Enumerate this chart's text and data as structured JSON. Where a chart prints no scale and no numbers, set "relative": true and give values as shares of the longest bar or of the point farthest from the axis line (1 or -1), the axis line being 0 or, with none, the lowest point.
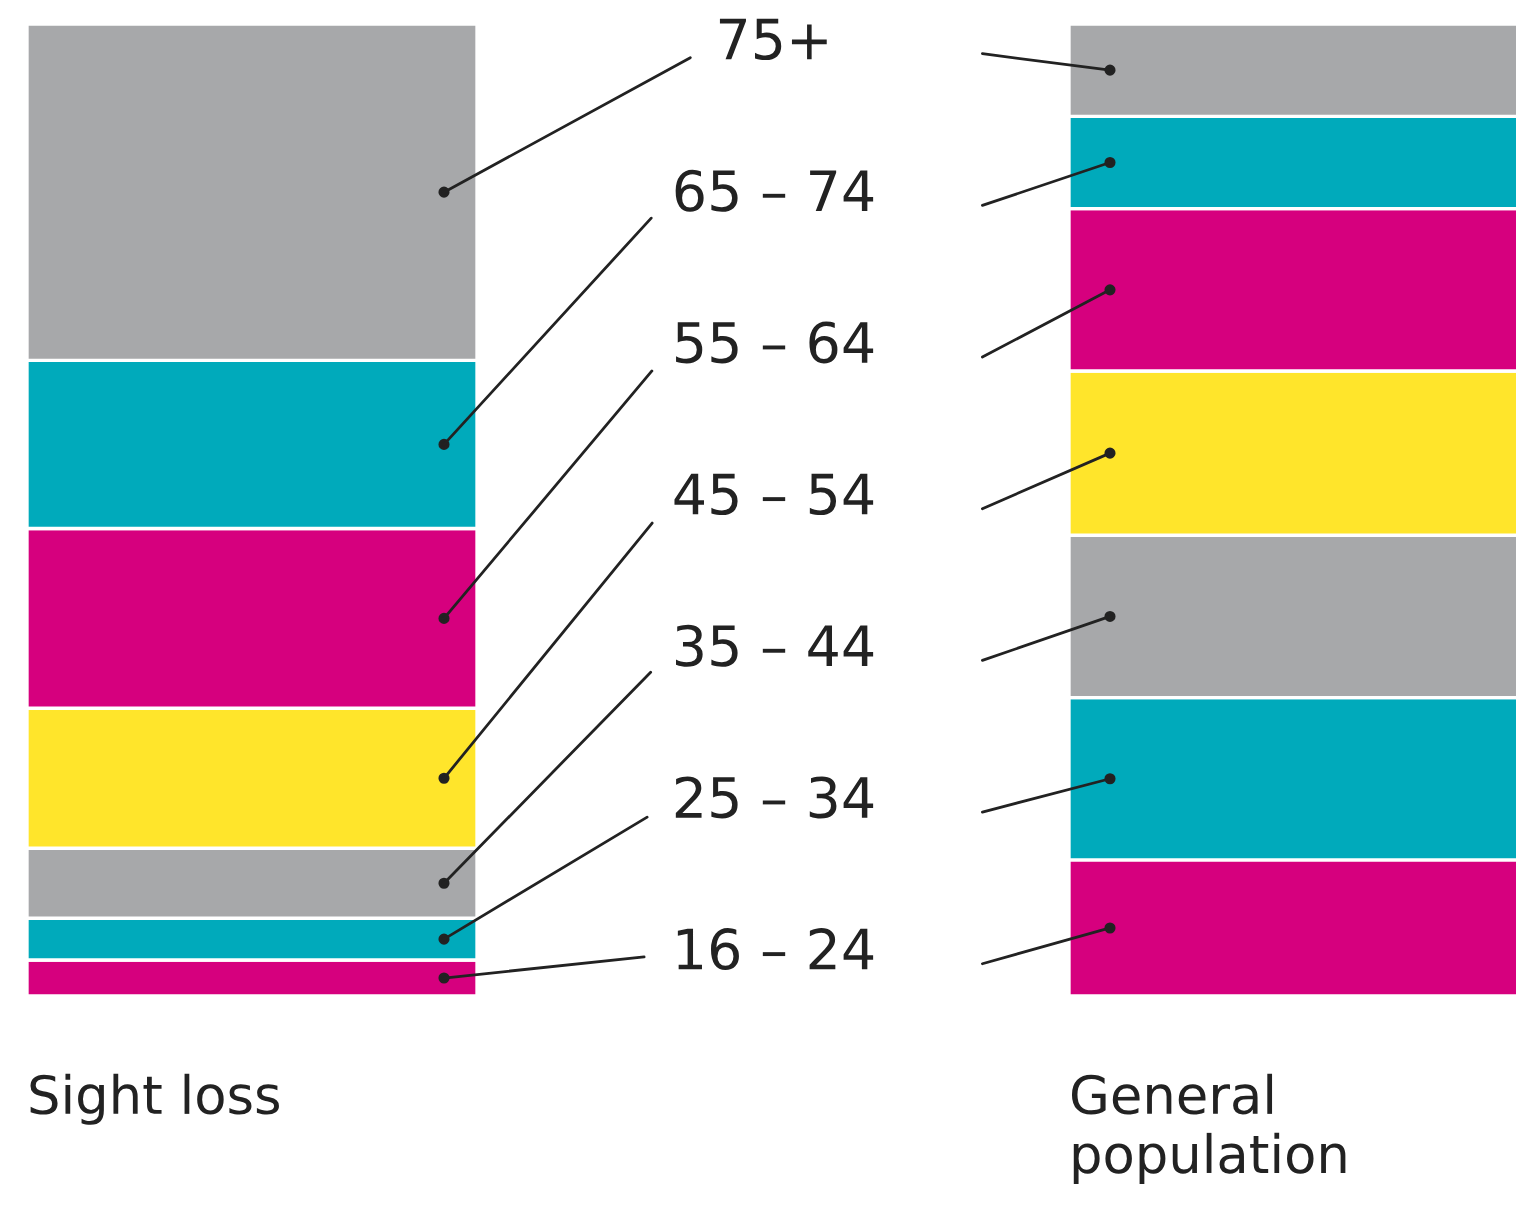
{
  "chart_data": {
    "type": "bar",
    "stacked": true,
    "relative": true,
    "legend": false,
    "categories": [
      "Sight loss",
      "General population"
    ],
    "series": [
      {
        "name": "16 – 24",
        "color": "#d6007e",
        "values": [
          0.037,
          0.14
        ]
      },
      {
        "name": "25 – 34",
        "color": "#00aabb",
        "values": [
          0.043,
          0.167
        ]
      },
      {
        "name": "35 – 44",
        "color": "#a7a8aa",
        "values": [
          0.072,
          0.167
        ]
      },
      {
        "name": "45 – 54",
        "color": "#ffe52b",
        "values": [
          0.144,
          0.169
        ]
      },
      {
        "name": "55 – 64",
        "color": "#d6007e",
        "values": [
          0.185,
          0.167
        ]
      },
      {
        "name": "65 – 74",
        "color": "#00aabb",
        "values": [
          0.173,
          0.095
        ]
      },
      {
        "name": "75+",
        "color": "#a7a8aa",
        "values": [
          0.346,
          0.095
        ]
      }
    ]
  }
}
